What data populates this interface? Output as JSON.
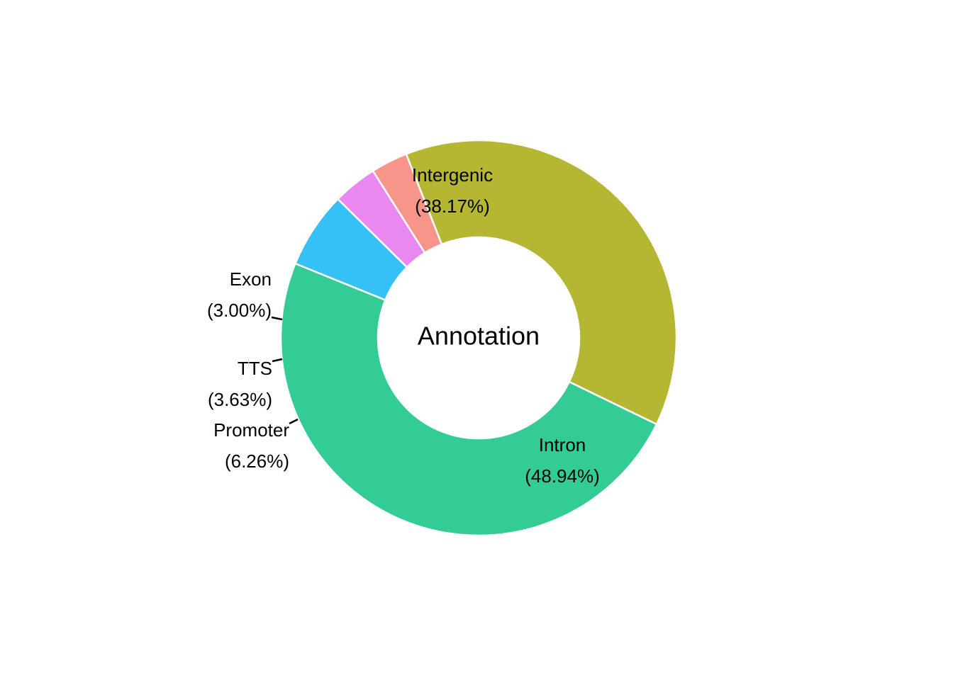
{
  "chart_data": {
    "type": "pie",
    "variant": "donut",
    "center_label": "Annotation",
    "slices": [
      {
        "name": "Intergenic",
        "value": 38.17,
        "label_line1": "Intergenic",
        "label_line2": "(38.17%)",
        "color": "#B5B631"
      },
      {
        "name": "Intron",
        "value": 48.94,
        "label_line1": "Intron",
        "label_line2": "(48.94%)",
        "color": "#33CC95"
      },
      {
        "name": "Promoter",
        "value": 6.26,
        "label_line1": "Promoter",
        "label_line2": "(6.26%)",
        "color": "#35C0F6"
      },
      {
        "name": "TTS",
        "value": 3.63,
        "label_line1": "TTS",
        "label_line2": "(3.63%)",
        "color": "#E988F1"
      },
      {
        "name": "Exon",
        "value": 3.0,
        "label_line1": "Exon",
        "label_line2": "(3.00%)",
        "color": "#F8958A"
      }
    ]
  }
}
